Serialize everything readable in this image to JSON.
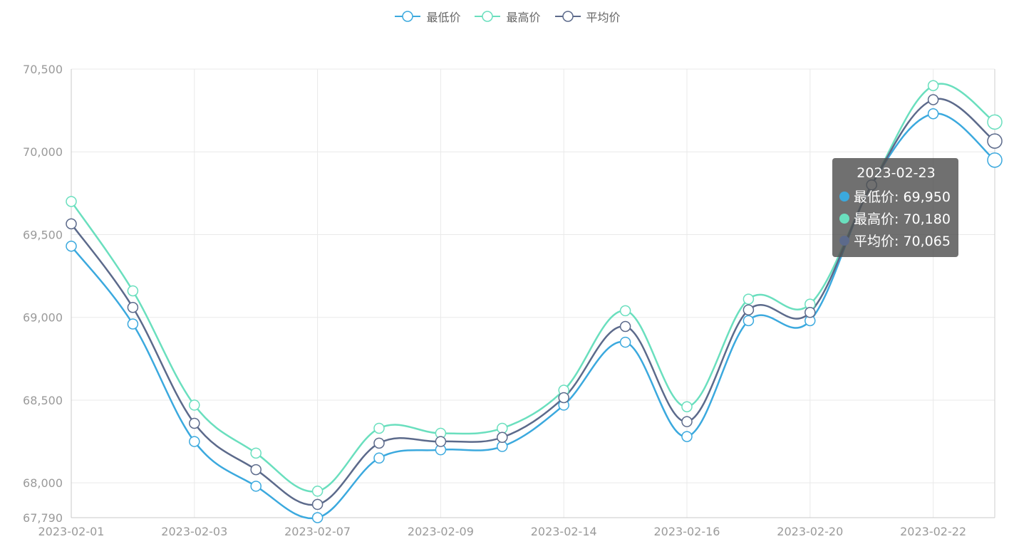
{
  "legend": [
    {
      "name": "最低价",
      "color": "#3BA9DE"
    },
    {
      "name": "最高价",
      "color": "#6ADFBE"
    },
    {
      "name": "平均价",
      "color": "#5C6A8B"
    }
  ],
  "tooltip": {
    "title": "2023-02-23",
    "rows": [
      {
        "label": "最低价: 69,950",
        "color": "#3BA9DE"
      },
      {
        "label": "最高价: 70,180",
        "color": "#6ADFBE"
      },
      {
        "label": "平均价: 70,065",
        "color": "#5C6A8B"
      }
    ]
  },
  "chart_data": {
    "type": "line",
    "smooth": true,
    "x": [
      "2023-02-01",
      "2023-02-02",
      "2023-02-03",
      "2023-02-06",
      "2023-02-07",
      "2023-02-08",
      "2023-02-09",
      "2023-02-10",
      "2023-02-14",
      "2023-02-15",
      "2023-02-16",
      "2023-02-17",
      "2023-02-20",
      "2023-02-21",
      "2023-02-22",
      "2023-02-23"
    ],
    "x_tick_labels": [
      "2023-02-01",
      "2023-02-03",
      "2023-02-07",
      "2023-02-09",
      "2023-02-14",
      "2023-02-16",
      "2023-02-20",
      "2023-02-22"
    ],
    "y_ticks": [
      67790,
      68000,
      68500,
      69000,
      69500,
      70000,
      70500
    ],
    "y_tick_labels": [
      "67,790",
      "68,000",
      "68,500",
      "69,000",
      "69,500",
      "70,000",
      "70,500"
    ],
    "ylim": [
      67790,
      70500
    ],
    "grid": true,
    "legend_position": "top-center",
    "series": [
      {
        "name": "最低价",
        "color": "#3BA9DE",
        "values": [
          69430,
          68960,
          68250,
          67980,
          67790,
          68150,
          68200,
          68220,
          68470,
          68850,
          68280,
          68980,
          68980,
          69800,
          70230,
          69950
        ]
      },
      {
        "name": "最高价",
        "color": "#6ADFBE",
        "values": [
          69700,
          69160,
          68470,
          68180,
          67950,
          68330,
          68300,
          68330,
          68560,
          69040,
          68460,
          69110,
          69080,
          69800,
          70400,
          70180
        ]
      },
      {
        "name": "平均价",
        "color": "#5C6A8B",
        "values": [
          69565,
          69060,
          68360,
          68080,
          67870,
          68240,
          68250,
          68275,
          68515,
          68945,
          68370,
          69045,
          69030,
          69800,
          70315,
          70065
        ]
      }
    ]
  }
}
